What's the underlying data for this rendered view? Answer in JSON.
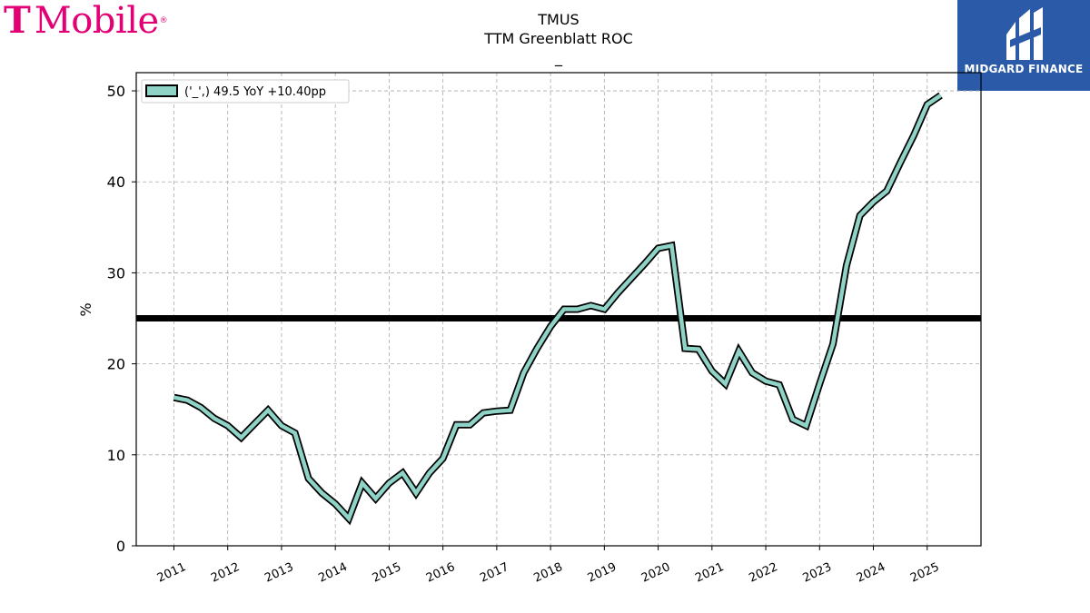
{
  "logos": {
    "left": {
      "t_glyph": "T",
      "word": "Mobile",
      "reg": "®",
      "color": "#e20074"
    },
    "right": {
      "text": "MIDGARD FINANCE",
      "bg": "#2b5aa8",
      "icon": "midgard-m-icon"
    }
  },
  "chart_data": {
    "type": "line",
    "title": "TMUS",
    "subtitle": "TTM Greenblatt ROC",
    "subtitle2": "_",
    "xlabel": "",
    "ylabel": "%",
    "xlim": [
      2010.3,
      2026.0
    ],
    "ylim": [
      0,
      52
    ],
    "yticks": [
      0,
      10,
      20,
      30,
      40,
      50
    ],
    "xticks": [
      2011,
      2012,
      2013,
      2014,
      2015,
      2016,
      2017,
      2018,
      2019,
      2020,
      2021,
      2022,
      2023,
      2024,
      2025
    ],
    "grid": true,
    "legend": "top-left",
    "reference_line": 25,
    "series": [
      {
        "name": "('_',) 49.5 YoY +10.40pp",
        "color": "#8fd3c7",
        "x": [
          2011.0,
          2011.25,
          2011.5,
          2011.75,
          2012.0,
          2012.25,
          2012.5,
          2012.75,
          2013.0,
          2013.25,
          2013.5,
          2013.75,
          2014.0,
          2014.25,
          2014.5,
          2014.75,
          2015.0,
          2015.25,
          2015.5,
          2015.75,
          2016.0,
          2016.25,
          2016.5,
          2016.75,
          2017.0,
          2017.25,
          2017.5,
          2017.75,
          2018.0,
          2018.25,
          2018.5,
          2018.75,
          2019.0,
          2019.25,
          2019.5,
          2019.75,
          2020.0,
          2020.25,
          2020.5,
          2020.75,
          2021.0,
          2021.25,
          2021.5,
          2021.75,
          2022.0,
          2022.25,
          2022.5,
          2022.75,
          2023.0,
          2023.25,
          2023.5,
          2023.75,
          2024.0,
          2024.25,
          2024.5,
          2024.75,
          2025.0,
          2025.25
        ],
        "values": [
          16.3,
          16.0,
          15.2,
          14.0,
          13.2,
          11.9,
          13.4,
          14.9,
          13.2,
          12.4,
          7.4,
          5.8,
          4.6,
          3.0,
          6.9,
          5.2,
          6.9,
          8.0,
          5.8,
          8.0,
          9.6,
          13.3,
          13.3,
          14.6,
          14.8,
          14.9,
          19.0,
          21.7,
          24.1,
          26.0,
          26.0,
          26.4,
          26.0,
          27.8,
          29.4,
          31.0,
          32.7,
          33.0,
          21.7,
          21.6,
          19.2,
          17.8,
          21.4,
          19.0,
          18.1,
          17.7,
          13.9,
          13.2,
          17.8,
          22.2,
          30.8,
          36.3,
          37.8,
          39.0,
          42.1,
          45.1,
          48.5,
          49.5
        ]
      }
    ]
  }
}
